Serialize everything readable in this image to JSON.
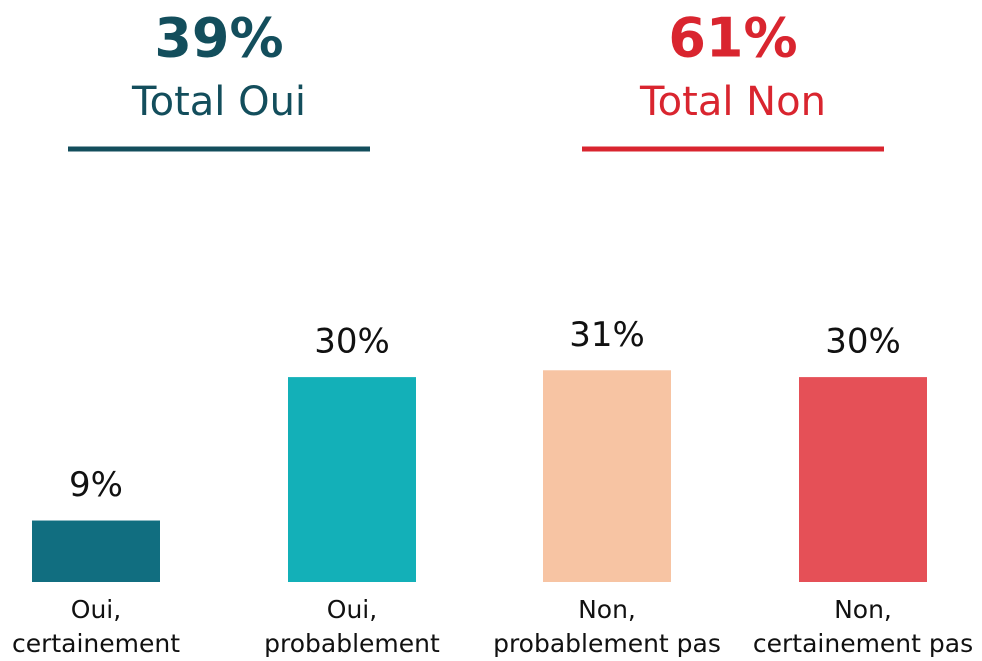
{
  "chart_data": {
    "type": "bar",
    "annotations": [
      {
        "value_text": "39%",
        "label": "Total Oui",
        "color": "#134e5c"
      },
      {
        "value_text": "61%",
        "label": "Total Non",
        "color": "#d9252f"
      }
    ],
    "categories": [
      "Oui,\ncertainement",
      "Oui,\nprobablement",
      "Non,\nprobablement pas",
      "Non,\ncertainement pas"
    ],
    "values": [
      9,
      30,
      31,
      30
    ],
    "value_labels": [
      "9%",
      "30%",
      "31%",
      "30%"
    ],
    "colors": [
      "#116e80",
      "#13b0b8",
      "#f7c4a3",
      "#e55057"
    ]
  }
}
